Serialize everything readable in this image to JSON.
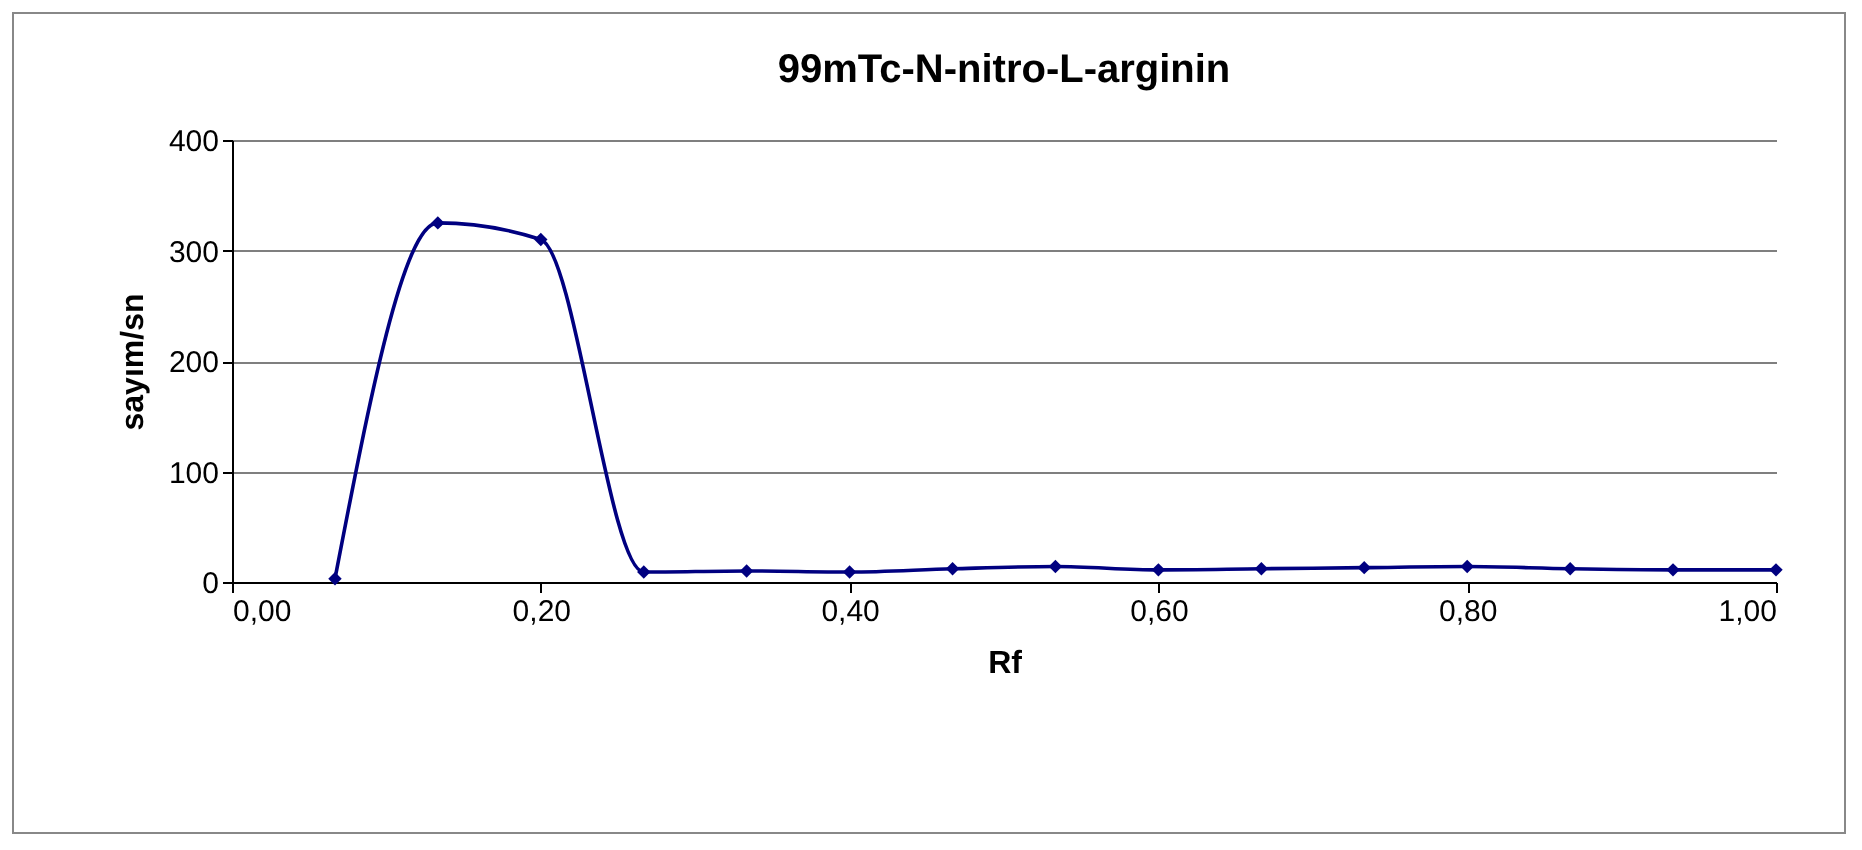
{
  "chart_data": {
    "type": "line",
    "title": "99mTc-N-nitro-L-arginin",
    "xlabel": "Rf",
    "ylabel": "sayım/sn",
    "x": [
      0.0667,
      0.1333,
      0.2,
      0.2667,
      0.3333,
      0.4,
      0.4667,
      0.5333,
      0.6,
      0.6667,
      0.7333,
      0.8,
      0.8667,
      0.9333,
      1.0
    ],
    "series": [
      {
        "color": "#000080",
        "values": [
          3,
          325,
          310,
          9,
          10,
          9,
          12,
          14,
          11,
          12,
          13,
          14,
          12,
          11,
          11
        ]
      }
    ],
    "xlim": [
      0,
      1
    ],
    "xticks": [
      {
        "value": 0,
        "label": "0,00"
      },
      {
        "value": 0.2,
        "label": "0,20"
      },
      {
        "value": 0.4,
        "label": "0,40"
      },
      {
        "value": 0.6,
        "label": "0,60"
      },
      {
        "value": 0.8,
        "label": "0,80"
      },
      {
        "value": 1,
        "label": "1,00"
      }
    ],
    "ylim": [
      0,
      400
    ],
    "yticks": [
      0,
      100,
      200,
      300,
      400
    ],
    "grid": "y",
    "marker": "diamond",
    "line_style": "solid"
  }
}
